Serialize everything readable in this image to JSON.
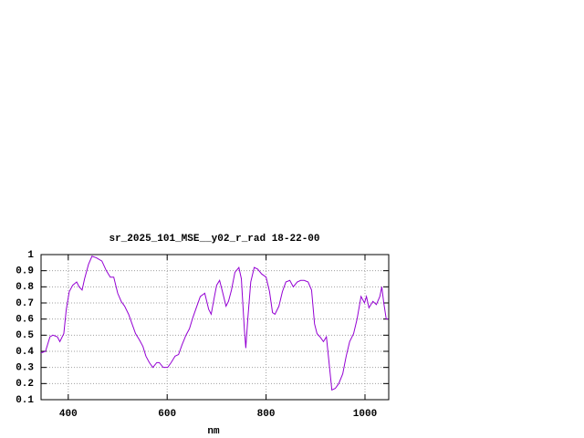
{
  "chart_data": {
    "type": "line",
    "title": "sr_2025_101_MSE__y02_r_rad 18-22-00",
    "xlabel": "nm",
    "x": [
      345,
      354,
      363,
      369,
      378,
      383,
      391,
      396,
      402,
      409,
      417,
      422,
      428,
      433,
      441,
      448,
      457,
      468,
      477,
      485,
      492,
      500,
      507,
      514,
      522,
      529,
      536,
      544,
      551,
      557,
      564,
      571,
      579,
      584,
      592,
      601,
      608,
      616,
      623,
      630,
      638,
      645,
      652,
      660,
      667,
      676,
      684,
      689,
      695,
      700,
      706,
      711,
      719,
      724,
      730,
      737,
      745,
      750,
      756,
      759,
      763,
      769,
      776,
      783,
      791,
      800,
      807,
      813,
      818,
      826,
      833,
      840,
      848,
      855,
      863,
      870,
      877,
      885,
      892,
      898,
      903,
      909,
      916,
      922,
      927,
      933,
      940,
      947,
      955,
      962,
      969,
      977,
      984,
      992,
      999,
      1003,
      1008,
      1016,
      1023,
      1030,
      1034,
      1038,
      1043,
      1047
    ],
    "series": [
      {
        "color": "#9400d3",
        "values": [
          0.39,
          0.4,
          0.49,
          0.5,
          0.49,
          0.46,
          0.51,
          0.66,
          0.77,
          0.81,
          0.83,
          0.8,
          0.78,
          0.85,
          0.94,
          0.99,
          0.98,
          0.96,
          0.9,
          0.86,
          0.86,
          0.76,
          0.71,
          0.68,
          0.63,
          0.57,
          0.51,
          0.47,
          0.43,
          0.37,
          0.33,
          0.3,
          0.33,
          0.33,
          0.3,
          0.3,
          0.33,
          0.37,
          0.38,
          0.44,
          0.5,
          0.54,
          0.61,
          0.68,
          0.74,
          0.76,
          0.66,
          0.63,
          0.73,
          0.81,
          0.84,
          0.78,
          0.68,
          0.71,
          0.78,
          0.89,
          0.92,
          0.85,
          0.54,
          0.42,
          0.6,
          0.83,
          0.92,
          0.91,
          0.88,
          0.86,
          0.77,
          0.64,
          0.63,
          0.68,
          0.77,
          0.83,
          0.84,
          0.8,
          0.83,
          0.84,
          0.84,
          0.83,
          0.78,
          0.57,
          0.51,
          0.49,
          0.46,
          0.49,
          0.34,
          0.16,
          0.17,
          0.2,
          0.26,
          0.37,
          0.46,
          0.51,
          0.6,
          0.74,
          0.7,
          0.74,
          0.67,
          0.71,
          0.69,
          0.74,
          0.8,
          0.7,
          0.6,
          0.6
        ]
      }
    ],
    "xlim": [
      345,
      1048
    ],
    "ylim": [
      0.1,
      1
    ],
    "xticks": [
      400,
      600,
      800,
      1000
    ],
    "yticks": [
      0.1,
      0.2,
      0.3,
      0.4,
      0.5,
      0.6,
      0.7,
      0.8,
      0.9,
      1
    ],
    "grid": true
  }
}
